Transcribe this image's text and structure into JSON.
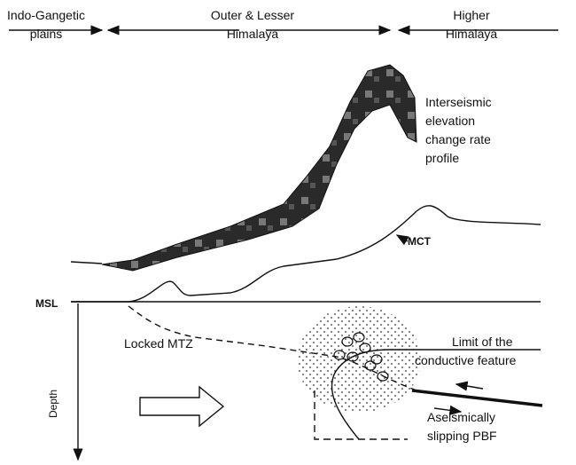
{
  "regions": [
    {
      "lines": [
        "Indo-Gangetic",
        "plains"
      ]
    },
    {
      "lines": [
        "Outer & Lesser",
        "Himalaya"
      ]
    },
    {
      "lines": [
        "Higher",
        "Himalaya"
      ]
    }
  ],
  "labels": {
    "profile": [
      "Interseismic",
      "elevation",
      "change rate",
      "profile"
    ],
    "mct": "MCT",
    "msl": "MSL",
    "locked": "Locked MTZ",
    "limit": [
      "Limit of the",
      "conductive feature"
    ],
    "depth": "Depth",
    "pbf": [
      "Aseismically",
      "slipping PBF"
    ]
  }
}
